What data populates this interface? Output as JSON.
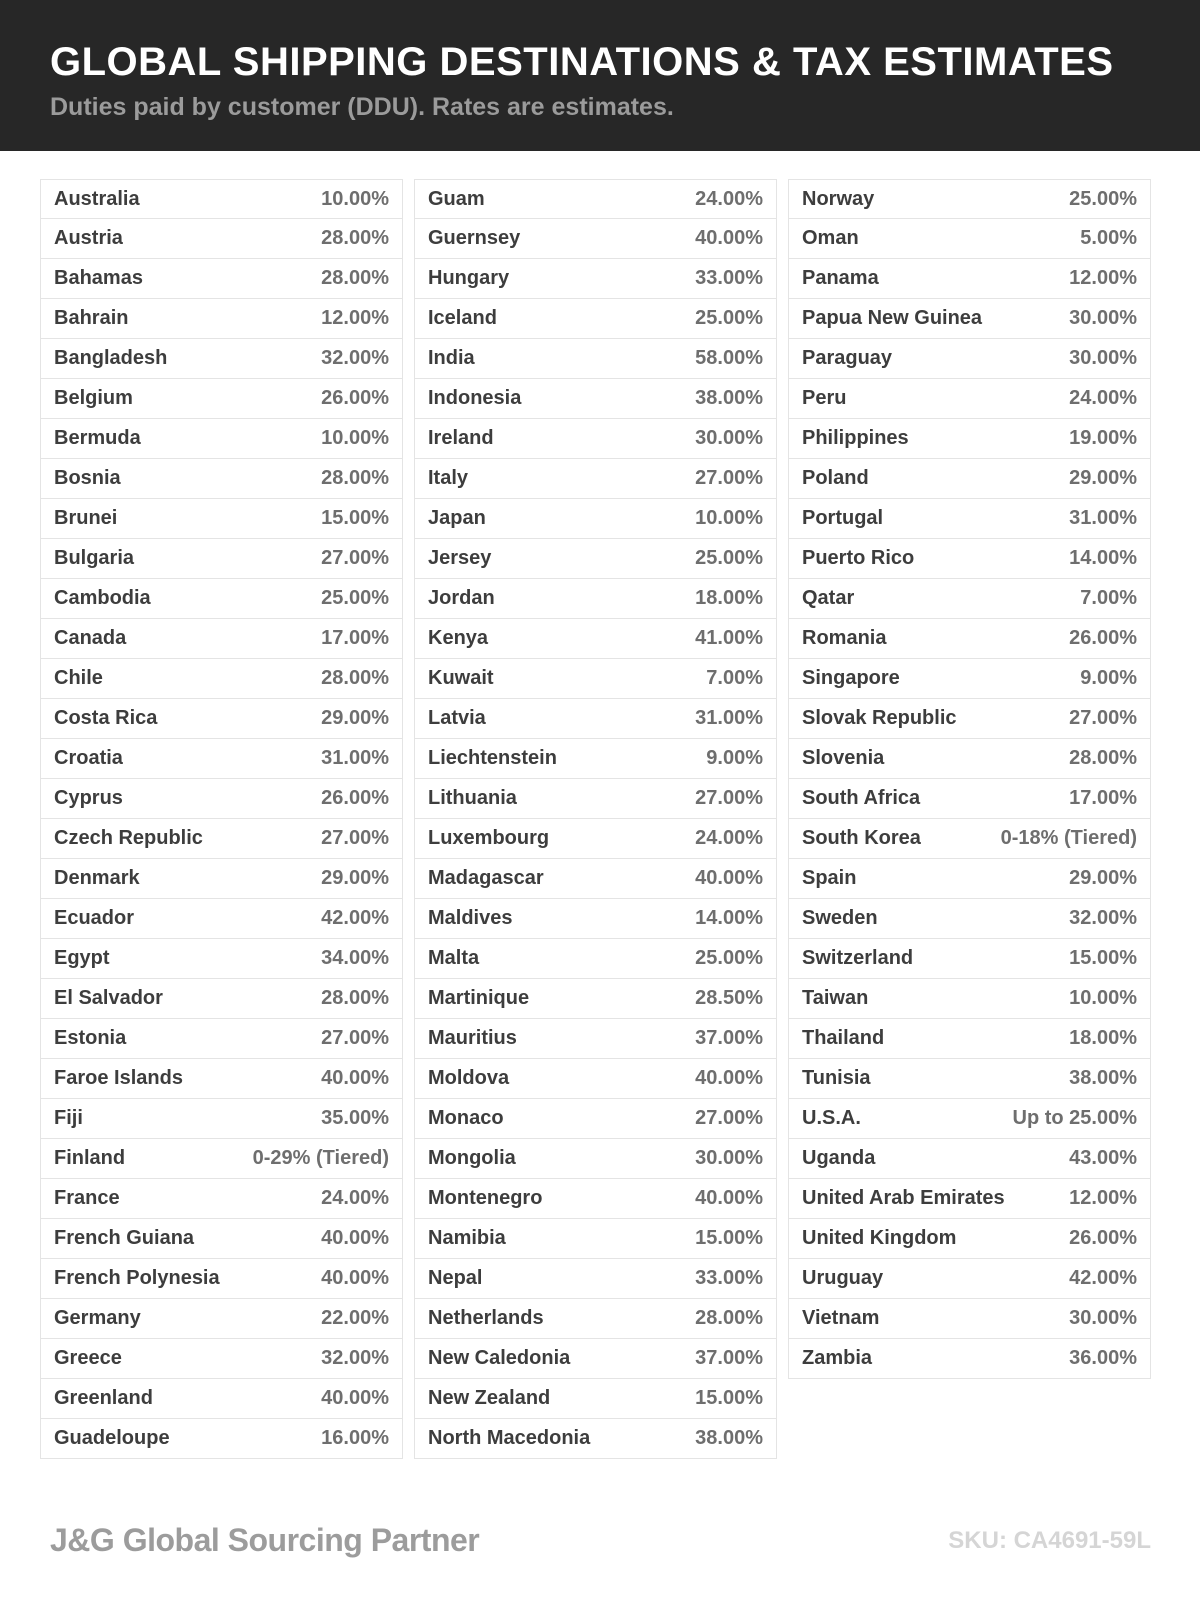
{
  "header": {
    "title": "GLOBAL SHIPPING DESTINATIONS & TAX ESTIMATES",
    "subtitle": "Duties paid by customer (DDU). Rates are estimates."
  },
  "colors": {
    "header_background": "#272727",
    "title_text": "#ffffff",
    "subtitle_text": "#9b9b9b",
    "country_text": "#3d3d3d",
    "rate_text": "#6e6e6e",
    "row_border": "#e4e4e4",
    "brand_text": "#9c9c9c",
    "sku_text": "#d5d5d5"
  },
  "table": {
    "columns": [
      {
        "rows": [
          {
            "country": "Australia",
            "rate": "10.00%"
          },
          {
            "country": "Austria",
            "rate": "28.00%"
          },
          {
            "country": "Bahamas",
            "rate": "28.00%"
          },
          {
            "country": "Bahrain",
            "rate": "12.00%"
          },
          {
            "country": "Bangladesh",
            "rate": "32.00%"
          },
          {
            "country": "Belgium",
            "rate": "26.00%"
          },
          {
            "country": "Bermuda",
            "rate": "10.00%"
          },
          {
            "country": "Bosnia",
            "rate": "28.00%"
          },
          {
            "country": "Brunei",
            "rate": "15.00%"
          },
          {
            "country": "Bulgaria",
            "rate": "27.00%"
          },
          {
            "country": "Cambodia",
            "rate": "25.00%"
          },
          {
            "country": "Canada",
            "rate": "17.00%"
          },
          {
            "country": "Chile",
            "rate": "28.00%"
          },
          {
            "country": "Costa Rica",
            "rate": "29.00%"
          },
          {
            "country": "Croatia",
            "rate": "31.00%"
          },
          {
            "country": "Cyprus",
            "rate": "26.00%"
          },
          {
            "country": "Czech Republic",
            "rate": "27.00%"
          },
          {
            "country": "Denmark",
            "rate": "29.00%"
          },
          {
            "country": "Ecuador",
            "rate": "42.00%"
          },
          {
            "country": "Egypt",
            "rate": "34.00%"
          },
          {
            "country": "El Salvador",
            "rate": "28.00%"
          },
          {
            "country": "Estonia",
            "rate": "27.00%"
          },
          {
            "country": "Faroe Islands",
            "rate": "40.00%"
          },
          {
            "country": "Fiji",
            "rate": "35.00%"
          },
          {
            "country": "Finland",
            "rate": "0-29% (Tiered)"
          },
          {
            "country": "France",
            "rate": "24.00%"
          },
          {
            "country": "French Guiana",
            "rate": "40.00%"
          },
          {
            "country": "French Polynesia",
            "rate": "40.00%"
          },
          {
            "country": "Germany",
            "rate": "22.00%"
          },
          {
            "country": "Greece",
            "rate": "32.00%"
          },
          {
            "country": "Greenland",
            "rate": "40.00%"
          },
          {
            "country": "Guadeloupe",
            "rate": "16.00%"
          }
        ]
      },
      {
        "rows": [
          {
            "country": "Guam",
            "rate": "24.00%"
          },
          {
            "country": "Guernsey",
            "rate": "40.00%"
          },
          {
            "country": "Hungary",
            "rate": "33.00%"
          },
          {
            "country": "Iceland",
            "rate": "25.00%"
          },
          {
            "country": "India",
            "rate": "58.00%"
          },
          {
            "country": "Indonesia",
            "rate": "38.00%"
          },
          {
            "country": "Ireland",
            "rate": "30.00%"
          },
          {
            "country": "Italy",
            "rate": "27.00%"
          },
          {
            "country": "Japan",
            "rate": "10.00%"
          },
          {
            "country": "Jersey",
            "rate": "25.00%"
          },
          {
            "country": "Jordan",
            "rate": "18.00%"
          },
          {
            "country": "Kenya",
            "rate": "41.00%"
          },
          {
            "country": "Kuwait",
            "rate": "7.00%"
          },
          {
            "country": "Latvia",
            "rate": "31.00%"
          },
          {
            "country": "Liechtenstein",
            "rate": "9.00%"
          },
          {
            "country": "Lithuania",
            "rate": "27.00%"
          },
          {
            "country": "Luxembourg",
            "rate": "24.00%"
          },
          {
            "country": "Madagascar",
            "rate": "40.00%"
          },
          {
            "country": "Maldives",
            "rate": "14.00%"
          },
          {
            "country": "Malta",
            "rate": "25.00%"
          },
          {
            "country": "Martinique",
            "rate": "28.50%"
          },
          {
            "country": "Mauritius",
            "rate": "37.00%"
          },
          {
            "country": "Moldova",
            "rate": "40.00%"
          },
          {
            "country": "Monaco",
            "rate": "27.00%"
          },
          {
            "country": "Mongolia",
            "rate": "30.00%"
          },
          {
            "country": "Montenegro",
            "rate": "40.00%"
          },
          {
            "country": "Namibia",
            "rate": "15.00%"
          },
          {
            "country": "Nepal",
            "rate": "33.00%"
          },
          {
            "country": "Netherlands",
            "rate": "28.00%"
          },
          {
            "country": "New Caledonia",
            "rate": "37.00%"
          },
          {
            "country": "New Zealand",
            "rate": "15.00%"
          },
          {
            "country": "North Macedonia",
            "rate": "38.00%"
          }
        ]
      },
      {
        "rows": [
          {
            "country": "Norway",
            "rate": "25.00%"
          },
          {
            "country": "Oman",
            "rate": "5.00%"
          },
          {
            "country": "Panama",
            "rate": "12.00%"
          },
          {
            "country": "Papua New Guinea",
            "rate": "30.00%"
          },
          {
            "country": "Paraguay",
            "rate": "30.00%"
          },
          {
            "country": "Peru",
            "rate": "24.00%"
          },
          {
            "country": "Philippines",
            "rate": "19.00%"
          },
          {
            "country": "Poland",
            "rate": "29.00%"
          },
          {
            "country": "Portugal",
            "rate": "31.00%"
          },
          {
            "country": "Puerto Rico",
            "rate": "14.00%"
          },
          {
            "country": "Qatar",
            "rate": "7.00%"
          },
          {
            "country": "Romania",
            "rate": "26.00%"
          },
          {
            "country": "Singapore",
            "rate": "9.00%"
          },
          {
            "country": "Slovak Republic",
            "rate": "27.00%"
          },
          {
            "country": "Slovenia",
            "rate": "28.00%"
          },
          {
            "country": "South Africa",
            "rate": "17.00%"
          },
          {
            "country": "South Korea",
            "rate": "0-18% (Tiered)"
          },
          {
            "country": "Spain",
            "rate": "29.00%"
          },
          {
            "country": "Sweden",
            "rate": "32.00%"
          },
          {
            "country": "Switzerland",
            "rate": "15.00%"
          },
          {
            "country": "Taiwan",
            "rate": "10.00%"
          },
          {
            "country": "Thailand",
            "rate": "18.00%"
          },
          {
            "country": "Tunisia",
            "rate": "38.00%"
          },
          {
            "country": "U.S.A.",
            "rate": "Up to 25.00%"
          },
          {
            "country": "Uganda",
            "rate": "43.00%"
          },
          {
            "country": "United Arab Emirates",
            "rate": "12.00%"
          },
          {
            "country": "United Kingdom",
            "rate": "26.00%"
          },
          {
            "country": "Uruguay",
            "rate": "42.00%"
          },
          {
            "country": "Vietnam",
            "rate": "30.00%"
          },
          {
            "country": "Zambia",
            "rate": "36.00%"
          }
        ]
      }
    ]
  },
  "footer": {
    "brand": "J&G Global Sourcing Partner",
    "sku": "SKU: CA4691-59L"
  }
}
